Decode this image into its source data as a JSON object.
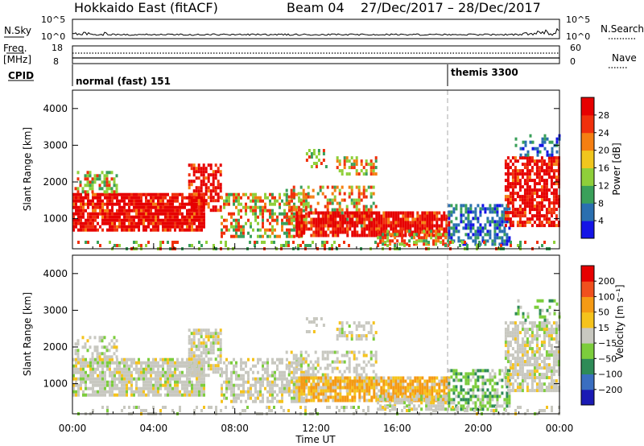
{
  "header": {
    "station": "Hokkaido East (fitACF)",
    "beam": "Beam 04",
    "date_range": "27/Dec/2017 – 28/Dec/2017"
  },
  "strip": {
    "nsky_label": "N.Sky",
    "nsky_ticks": [
      "10^5",
      "10^0"
    ],
    "nsearch_label": "N.Search",
    "freq_label": "Freq.",
    "freq_unit": "[MHz]",
    "freq_ticks": [
      "18",
      "8"
    ],
    "nave_label": "Nave",
    "nave_ticks": [
      "60",
      "0"
    ],
    "cpid_label": "CPID",
    "cpid_segments": [
      {
        "label": "normal (fast) 151",
        "start_hour": 0
      },
      {
        "label": "themis 3300",
        "start_hour": 18.6
      }
    ]
  },
  "chart_data": [
    {
      "type": "heatmap",
      "name": "power",
      "ylabel": "Slant Range [km]",
      "y_ticks": [
        1000,
        2000,
        3000,
        4000
      ],
      "ylim": [
        180,
        4500
      ],
      "xlim": [
        0,
        24
      ],
      "colorbar": {
        "label": "Power [dB]",
        "ticks": [
          "4",
          "8",
          "12",
          "16",
          "20",
          "24",
          "28"
        ],
        "colors": [
          "#1414e6",
          "#2a6fb0",
          "#3aa05a",
          "#8fcf3a",
          "#f0c61e",
          "#f57f12",
          "#f0300c",
          "#e60000"
        ]
      }
    },
    {
      "type": "heatmap",
      "name": "velocity",
      "ylabel": "Slant Range [km]",
      "y_ticks": [
        1000,
        2000,
        3000,
        4000
      ],
      "ylim": [
        180,
        4500
      ],
      "xlim": [
        0,
        24
      ],
      "xlabel": "Time UT",
      "x_ticks": [
        "00:00",
        "04:00",
        "08:00",
        "12:00",
        "16:00",
        "20:00",
        "00:00"
      ],
      "colorbar": {
        "label": "Velocity [m s⁻¹]",
        "ticks": [
          "200",
          "100",
          "50",
          "15",
          "−15",
          "−50",
          "−100",
          "−200"
        ],
        "colors": [
          "#1a1ab4",
          "#3a6ec0",
          "#2e8b57",
          "#7ccd3c",
          "#c8c8c0",
          "#f5c31c",
          "#f59a14",
          "#f0501e",
          "#e60000"
        ]
      }
    }
  ]
}
